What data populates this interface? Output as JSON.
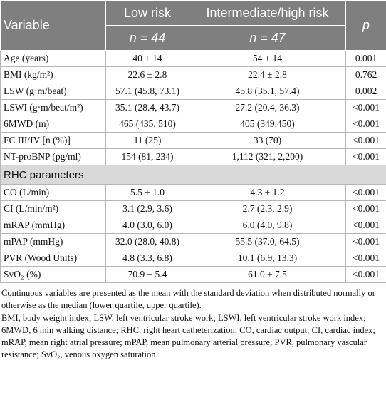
{
  "header": {
    "columns": [
      "Variable",
      "Low risk",
      "Intermediate/high risk",
      "p"
    ],
    "n_row": [
      "n = 44",
      "n = 47"
    ]
  },
  "table": {
    "rows": [
      [
        "Age (years)",
        "40 ± 14",
        "54 ± 14",
        "0.001"
      ],
      [
        "BMI (kg/m²)",
        "22.6 ± 2.8",
        "22.4 ± 2.8",
        "0.762"
      ],
      [
        "LSW (g·m/beat)",
        "57.1 (45.8, 73.1)",
        "45.8 (35.1, 57.4)",
        "0.002"
      ],
      [
        "LSWI (g·m/beat/m²)",
        "35.1 (28.4, 43.7)",
        "27.2 (20.4, 36.3)",
        "<0.001"
      ],
      [
        "6MWD (m)",
        "465 (435, 510)",
        "405 (349,450)",
        "<0.001"
      ],
      [
        "FC III/IV [n (%)]",
        "11 (25)",
        "33 (70)",
        "<0.001"
      ],
      [
        "NT-proBNP (pg/ml)",
        "154 (81, 234)",
        "1,112 (321, 2,200)",
        "<0.001"
      ]
    ]
  },
  "section": {
    "title": "RHC parameters",
    "rows": [
      [
        "CO (L/min)",
        "5.5 ± 1.0",
        "4.3 ± 1.2",
        "<0.001"
      ],
      [
        "CI (L/min/m²)",
        "3.1 (2.9, 3.6)",
        "2.7 (2.3, 2.9)",
        "<0.001"
      ],
      [
        "mRAP (mmHg)",
        "4.0 (3.0, 6.0)",
        "6.0 (4.0, 9.8)",
        "<0.001"
      ],
      [
        "mPAP (mmHg)",
        "32.0 (28.0, 40.8)",
        "55.5 (37.0, 64.5)",
        "<0.001"
      ],
      [
        "PVR (Wood Units)",
        "4.8 (3.3, 6.8)",
        "10.1 (6.9, 13.3)",
        "<0.001"
      ],
      [
        "SvO₂ (%)",
        "70.9 ± 5.4",
        "61.0 ± 7.5",
        "<0.001"
      ]
    ]
  },
  "notes": [
    "Continuous variables are presented as the mean with the standard deviation when distributed normally or otherwise as the median (lower quartile, upper quartile).",
    "BMI, body weight index; LSW, left ventricular stroke work; LSWI, left ventricular stroke work index; 6MWD, 6 min walking distance; RHC, right heart catheterization; CO, cardiac output; CI, cardiac index; mRAP, mean right atrial pressure; mPAP, mean pulmonary arterial pressure; PVR, pulmonary vascular resistance; SvO₂, venous oxygen saturation."
  ]
}
